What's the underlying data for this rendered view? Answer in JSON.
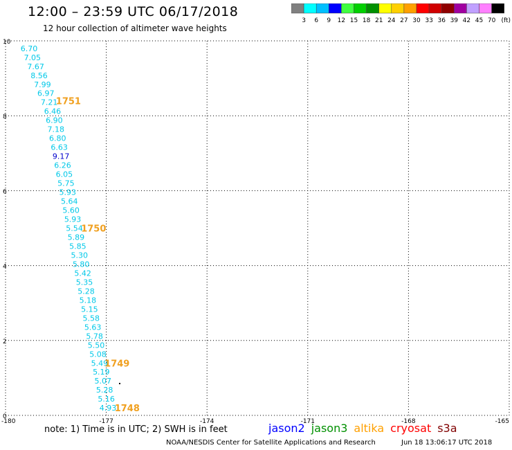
{
  "header": {
    "title": "12:00 – 23:59 UTC 06/17/2018",
    "subtitle": "12 hour collection of altimeter wave heights"
  },
  "colorbar": {
    "colors": [
      "#808080",
      "#00ffff",
      "#00bfff",
      "#0000ff",
      "#40ff40",
      "#00d000",
      "#009000",
      "#ffff00",
      "#ffd000",
      "#ffa000",
      "#ff0000",
      "#d00000",
      "#900000",
      "#a000a0",
      "#c0a0ff",
      "#ff80ff",
      "#000000"
    ],
    "labels": [
      "3",
      "6",
      "9",
      "12",
      "15",
      "18",
      "21",
      "24",
      "27",
      "30",
      "33",
      "36",
      "39",
      "42",
      "45",
      "70"
    ],
    "unit": "(ft)"
  },
  "chart_data": {
    "type": "scatter",
    "title": "12 hour collection of altimeter wave heights",
    "xlim": [
      -180,
      -165
    ],
    "ylim": [
      0,
      10
    ],
    "grid": true,
    "x_ticks": [
      "-180",
      "-177",
      "-174",
      "-171",
      "-168",
      "-165"
    ],
    "y_ticks": [
      "0",
      "2",
      "4",
      "6",
      "8",
      "10"
    ],
    "wave_heights_ft": [
      {
        "x": -179.3,
        "y": 9.8,
        "label": "6.70",
        "color": "#00c8e8"
      },
      {
        "x": -179.2,
        "y": 9.56,
        "label": "7.05",
        "color": "#00c8e8"
      },
      {
        "x": -179.1,
        "y": 9.32,
        "label": "7.67",
        "color": "#00c8e8"
      },
      {
        "x": -179.0,
        "y": 9.08,
        "label": "8.56",
        "color": "#00c8e8"
      },
      {
        "x": -178.9,
        "y": 8.84,
        "label": "7.99",
        "color": "#00c8e8"
      },
      {
        "x": -178.8,
        "y": 8.6,
        "label": "6.97",
        "color": "#00c8e8"
      },
      {
        "x": -178.7,
        "y": 8.36,
        "label": "7.21",
        "color": "#00c8e8"
      },
      {
        "x": -178.6,
        "y": 8.12,
        "label": "6.46",
        "color": "#00c8e8"
      },
      {
        "x": -178.55,
        "y": 7.88,
        "label": "6.90",
        "color": "#00c8e8"
      },
      {
        "x": -178.5,
        "y": 7.64,
        "label": "7.18",
        "color": "#00c8e8"
      },
      {
        "x": -178.45,
        "y": 7.4,
        "label": "6.80",
        "color": "#00c8e8"
      },
      {
        "x": -178.4,
        "y": 7.16,
        "label": "6.63",
        "color": "#00c8e8"
      },
      {
        "x": -178.35,
        "y": 6.92,
        "label": "9.17",
        "color": "#0000cc"
      },
      {
        "x": -178.3,
        "y": 6.68,
        "label": "6.26",
        "color": "#00c8e8"
      },
      {
        "x": -178.25,
        "y": 6.44,
        "label": "6.05",
        "color": "#00c8e8"
      },
      {
        "x": -178.2,
        "y": 6.2,
        "label": "5.75",
        "color": "#00c8e8"
      },
      {
        "x": -178.15,
        "y": 5.96,
        "label": "5.93",
        "color": "#00c8e8"
      },
      {
        "x": -178.1,
        "y": 5.72,
        "label": "5.64",
        "color": "#00c8e8"
      },
      {
        "x": -178.05,
        "y": 5.48,
        "label": "5.60",
        "color": "#00c8e8"
      },
      {
        "x": -178.0,
        "y": 5.24,
        "label": "5.93",
        "color": "#00c8e8"
      },
      {
        "x": -177.95,
        "y": 5.0,
        "label": "5.54",
        "color": "#00c8e8"
      },
      {
        "x": -177.9,
        "y": 4.76,
        "label": "5.89",
        "color": "#00c8e8"
      },
      {
        "x": -177.85,
        "y": 4.52,
        "label": "5.85",
        "color": "#00c8e8"
      },
      {
        "x": -177.8,
        "y": 4.28,
        "label": "5.30",
        "color": "#00c8e8"
      },
      {
        "x": -177.75,
        "y": 4.04,
        "label": "5.80",
        "color": "#00c8e8"
      },
      {
        "x": -177.7,
        "y": 3.8,
        "label": "5.42",
        "color": "#00c8e8"
      },
      {
        "x": -177.65,
        "y": 3.56,
        "label": "5.35",
        "color": "#00c8e8"
      },
      {
        "x": -177.6,
        "y": 3.32,
        "label": "5.28",
        "color": "#00c8e8"
      },
      {
        "x": -177.55,
        "y": 3.08,
        "label": "5.18",
        "color": "#00c8e8"
      },
      {
        "x": -177.5,
        "y": 2.84,
        "label": "5.15",
        "color": "#00c8e8"
      },
      {
        "x": -177.45,
        "y": 2.6,
        "label": "5.58",
        "color": "#00c8e8"
      },
      {
        "x": -177.4,
        "y": 2.36,
        "label": "5.63",
        "color": "#00c8e8"
      },
      {
        "x": -177.35,
        "y": 2.12,
        "label": "5.78",
        "color": "#00c8e8"
      },
      {
        "x": -177.3,
        "y": 1.88,
        "label": "5.50",
        "color": "#00c8e8"
      },
      {
        "x": -177.25,
        "y": 1.64,
        "label": "5.08",
        "color": "#00c8e8"
      },
      {
        "x": -177.2,
        "y": 1.4,
        "label": "5.49",
        "color": "#00c8e8"
      },
      {
        "x": -177.15,
        "y": 1.16,
        "label": "5.19",
        "color": "#00c8e8"
      },
      {
        "x": -177.1,
        "y": 0.92,
        "label": "5.07",
        "color": "#00c8e8"
      },
      {
        "x": -177.05,
        "y": 0.68,
        "label": "5.28",
        "color": "#00c8e8"
      },
      {
        "x": -177.0,
        "y": 0.44,
        "label": "5.16",
        "color": "#00c8e8"
      },
      {
        "x": -176.95,
        "y": 0.2,
        "label": "4.93",
        "color": "#00c8e8"
      }
    ],
    "time_labels": [
      {
        "x": -178.5,
        "y": 8.4,
        "label": "1751",
        "color": "#f0a020"
      },
      {
        "x": -177.75,
        "y": 5.0,
        "label": "1750",
        "color": "#f0a020"
      },
      {
        "x": -177.05,
        "y": 1.4,
        "label": "1749",
        "color": "#f0a020"
      },
      {
        "x": -176.75,
        "y": 0.2,
        "label": "1748",
        "color": "#f0a020"
      }
    ],
    "markers": [
      {
        "x": -176.6,
        "y": 0.85,
        "color": "#000000"
      }
    ]
  },
  "footer": {
    "note": "note:  1) Time is in UTC;  2) SWH is in feet",
    "satellites": [
      {
        "name": "jason2",
        "color": "#0000ff"
      },
      {
        "name": "jason3",
        "color": "#009000"
      },
      {
        "name": "altika",
        "color": "#ffa000"
      },
      {
        "name": "cryosat",
        "color": "#ff0000"
      },
      {
        "name": "s3a",
        "color": "#800000"
      }
    ],
    "credit": "NOAA/NESDIS Center for Satellite Applications and Research",
    "timestamp": "Jun 18 13:06:17 UTC 2018"
  }
}
